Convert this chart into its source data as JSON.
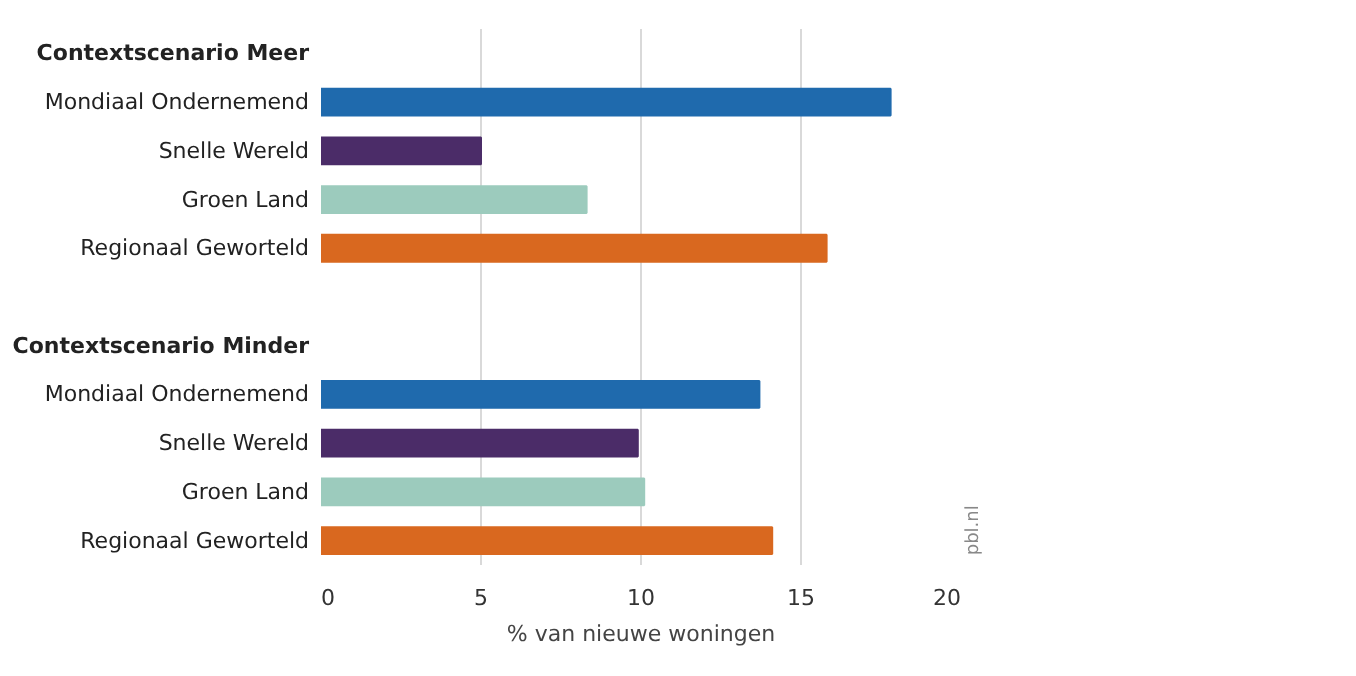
{
  "chart_data": {
    "type": "bar",
    "orientation": "horizontal",
    "xlabel": "% van nieuwe woningen",
    "categories": [
      "Contextscenario Meer",
      "Mondiaal Ondernemend",
      "Snelle Wereld",
      "Groen Land",
      "Regionaal Geworteld",
      null,
      "Contextscenario Minder",
      "Mondiaal Ondernemend",
      "Snelle Wereld",
      "Groen Land",
      "Regionaal Geworteld"
    ],
    "values": [
      null,
      17.8,
      5.0,
      8.3,
      15.8,
      null,
      null,
      13.7,
      9.9,
      10.1,
      14.1
    ],
    "colors": [
      "#ffffff",
      "#1f6aad",
      "#4b2c68",
      "#9ccbbd",
      "#d9681f",
      "#ffffff",
      "#ffffff",
      "#1f6aad",
      "#4b2c68",
      "#9ccbbd",
      "#d9681f"
    ],
    "xlim": [
      0,
      20
    ],
    "xticks": [
      0,
      5,
      10,
      15,
      20
    ],
    "grid": "x",
    "annotations": [
      "pbl.nl"
    ]
  }
}
